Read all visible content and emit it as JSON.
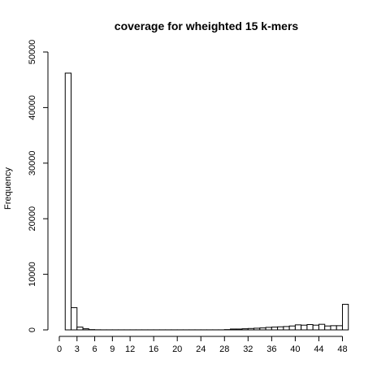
{
  "chart_data": {
    "type": "bar",
    "title": "coverage for wheighted 15 k-mers",
    "xlabel": "",
    "ylabel": "Frequency",
    "xlim": [
      0,
      50
    ],
    "ylim": [
      0,
      50000
    ],
    "bin_width": 1,
    "x_ticks": [
      0,
      3,
      6,
      9,
      12,
      16,
      20,
      24,
      28,
      32,
      36,
      40,
      44,
      48
    ],
    "y_ticks": [
      0,
      10000,
      20000,
      30000,
      40000,
      50000
    ],
    "bins_start": [
      0,
      1,
      2,
      3,
      4,
      5,
      6,
      7,
      8,
      9,
      10,
      11,
      12,
      13,
      14,
      15,
      16,
      17,
      18,
      19,
      20,
      21,
      22,
      23,
      24,
      25,
      26,
      27,
      28,
      29,
      30,
      31,
      32,
      33,
      34,
      35,
      36,
      37,
      38,
      39,
      40,
      41,
      42,
      43,
      44,
      45,
      46,
      47,
      48,
      49
    ],
    "values": [
      0,
      46200,
      4000,
      500,
      200,
      50,
      20,
      10,
      10,
      10,
      10,
      10,
      10,
      10,
      10,
      10,
      10,
      10,
      10,
      10,
      10,
      10,
      10,
      10,
      10,
      10,
      10,
      10,
      50,
      150,
      150,
      200,
      250,
      300,
      350,
      450,
      500,
      550,
      600,
      700,
      900,
      850,
      950,
      850,
      1000,
      700,
      750,
      750,
      4600,
      0
    ],
    "grid": false,
    "bar_fill": "#ffffff",
    "bar_stroke": "#000000"
  }
}
